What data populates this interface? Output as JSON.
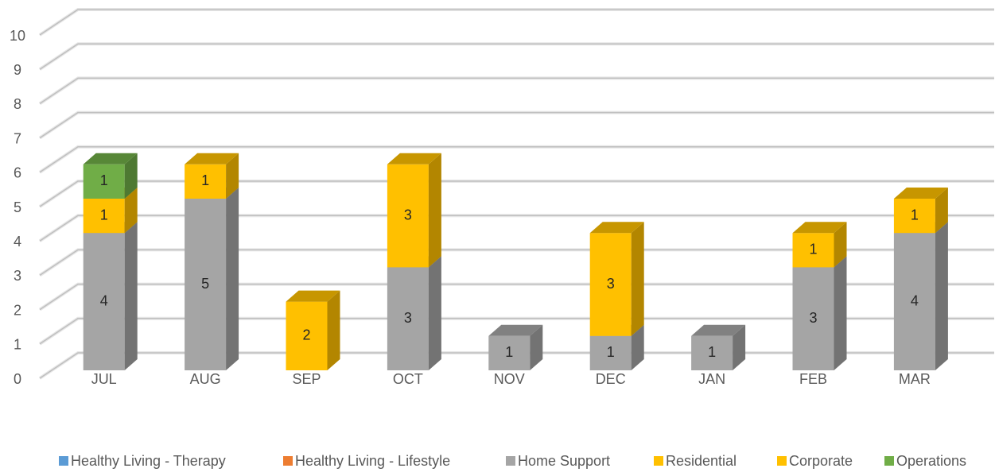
{
  "chart_data": {
    "type": "bar3d_stacked",
    "categories": [
      "JUL",
      "AUG",
      "SEP",
      "OCT",
      "NOV",
      "DEC",
      "JAN",
      "FEB",
      "MAR"
    ],
    "series": [
      {
        "name": "Healthy Living - Therapy",
        "color": "#5b9bd5",
        "values": [
          null,
          null,
          null,
          null,
          null,
          null,
          null,
          null,
          null
        ]
      },
      {
        "name": "Healthy Living - Lifestyle",
        "color": "#ed7d31",
        "values": [
          null,
          null,
          null,
          null,
          null,
          null,
          null,
          null,
          null
        ]
      },
      {
        "name": "Home Support",
        "color": "#a5a5a5",
        "values": [
          4,
          5,
          null,
          3,
          1,
          1,
          1,
          3,
          4
        ]
      },
      {
        "name": "Residential",
        "color": "#ffc000",
        "values": [
          1,
          1,
          2,
          3,
          null,
          3,
          null,
          1,
          1
        ]
      },
      {
        "name": "Corporate",
        "color": "#ffc000",
        "values": [
          null,
          null,
          null,
          null,
          null,
          null,
          null,
          null,
          null
        ]
      },
      {
        "name": "Operations",
        "color": "#70ad47",
        "values": [
          1,
          null,
          null,
          null,
          null,
          null,
          null,
          null,
          null
        ]
      }
    ],
    "ylim": [
      0,
      10
    ],
    "yticks": [
      0,
      1,
      2,
      3,
      4,
      5,
      6,
      7,
      8,
      9,
      10
    ],
    "grid": true,
    "legend": "bottom"
  }
}
